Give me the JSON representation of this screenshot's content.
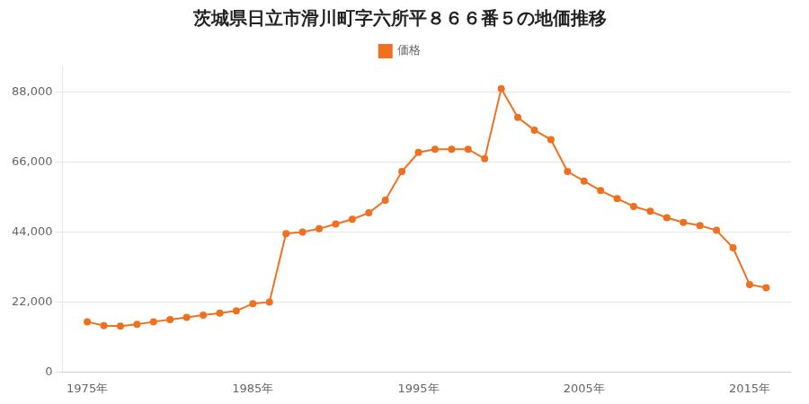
{
  "chart_data": {
    "type": "line",
    "title": "茨城県日立市滑川町字六所平８６６番５の地価推移",
    "x": [
      1975,
      1976,
      1977,
      1978,
      1979,
      1980,
      1981,
      1982,
      1983,
      1984,
      1985,
      1986,
      1987,
      1988,
      1989,
      1990,
      1991,
      1992,
      1993,
      1994,
      1995,
      1996,
      1997,
      1998,
      1999,
      2000,
      2001,
      2002,
      2003,
      2004,
      2005,
      2006,
      2007,
      2008,
      2009,
      2010,
      2011,
      2012,
      2013,
      2014,
      2015,
      2016
    ],
    "series": [
      {
        "name": "価格",
        "color": "#f07020",
        "marker": "circle",
        "values": [
          15800,
          14600,
          14400,
          15000,
          15800,
          16500,
          17200,
          17900,
          18500,
          19200,
          21500,
          22000,
          43500,
          44000,
          45000,
          46500,
          48000,
          50000,
          54000,
          63000,
          69000,
          70000,
          70000,
          70000,
          67000,
          89000,
          80000,
          76000,
          73000,
          63000,
          60000,
          57000,
          54500,
          52000,
          50500,
          48500,
          47000,
          46000,
          44500,
          39000,
          27500,
          26500
        ]
      }
    ],
    "xlim": [
      1973.5,
      2017.5
    ],
    "xticks": [
      {
        "value": 1975,
        "label": "1975年"
      },
      {
        "value": 1985,
        "label": "1985年"
      },
      {
        "value": 1995,
        "label": "1995年"
      },
      {
        "value": 2005,
        "label": "2005年"
      },
      {
        "value": 2015,
        "label": "2015年"
      }
    ],
    "ylim": [
      0,
      96000
    ],
    "yticks": [
      0,
      {
        "value": 22000,
        "label": "22,000"
      },
      {
        "value": 44000,
        "label": "44,000"
      },
      {
        "value": 66000,
        "label": "66,000"
      },
      {
        "value": 88000,
        "label": "88,000"
      }
    ],
    "grid": "y",
    "legend": "top"
  }
}
